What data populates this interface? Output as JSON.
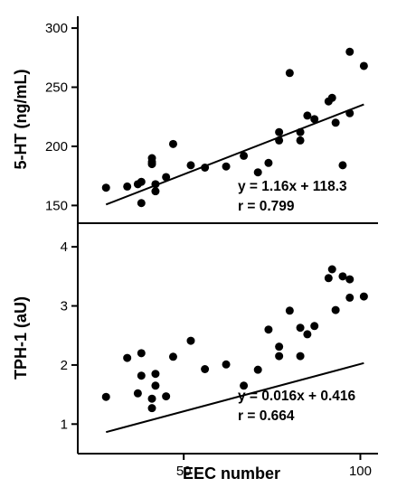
{
  "chart_data": [
    {
      "type": "scatter",
      "xlabel": "",
      "ylabel": "5-HT (ng/mL)",
      "xlim": [
        20,
        105
      ],
      "ylim": [
        135,
        310
      ],
      "yticks": [
        150,
        200,
        250,
        300
      ],
      "xticks": [],
      "grid": false,
      "points": [
        {
          "x": 28,
          "y": 165
        },
        {
          "x": 34,
          "y": 166
        },
        {
          "x": 37,
          "y": 168
        },
        {
          "x": 38,
          "y": 152
        },
        {
          "x": 38,
          "y": 170
        },
        {
          "x": 41,
          "y": 185
        },
        {
          "x": 41,
          "y": 187
        },
        {
          "x": 41,
          "y": 190
        },
        {
          "x": 42,
          "y": 162
        },
        {
          "x": 42,
          "y": 168
        },
        {
          "x": 45,
          "y": 174
        },
        {
          "x": 47,
          "y": 202
        },
        {
          "x": 52,
          "y": 184
        },
        {
          "x": 56,
          "y": 182
        },
        {
          "x": 62,
          "y": 183
        },
        {
          "x": 67,
          "y": 192
        },
        {
          "x": 71,
          "y": 178
        },
        {
          "x": 74,
          "y": 186
        },
        {
          "x": 77,
          "y": 205
        },
        {
          "x": 77,
          "y": 212
        },
        {
          "x": 80,
          "y": 262
        },
        {
          "x": 83,
          "y": 205
        },
        {
          "x": 83,
          "y": 212
        },
        {
          "x": 85,
          "y": 226
        },
        {
          "x": 87,
          "y": 223
        },
        {
          "x": 91,
          "y": 238
        },
        {
          "x": 92,
          "y": 241
        },
        {
          "x": 93,
          "y": 220
        },
        {
          "x": 95,
          "y": 184
        },
        {
          "x": 97,
          "y": 228
        },
        {
          "x": 97,
          "y": 280
        },
        {
          "x": 101,
          "y": 268
        }
      ],
      "fit": {
        "slope": 1.16,
        "intercept": 118.3,
        "x_range": [
          28,
          101
        ]
      },
      "annotations": [
        "y = 1.16x + 118.3",
        "r = 0.799"
      ]
    },
    {
      "type": "scatter",
      "xlabel": "EEC number",
      "ylabel": "TPH-1 (aU)",
      "xlim": [
        20,
        105
      ],
      "ylim": [
        0.5,
        4.4
      ],
      "yticks": [
        1,
        2,
        3,
        4
      ],
      "xticks": [
        50,
        100
      ],
      "grid": false,
      "points": [
        {
          "x": 28,
          "y": 1.46
        },
        {
          "x": 34,
          "y": 2.12
        },
        {
          "x": 37,
          "y": 1.52
        },
        {
          "x": 38,
          "y": 1.82
        },
        {
          "x": 38,
          "y": 2.2
        },
        {
          "x": 41,
          "y": 1.43
        },
        {
          "x": 41,
          "y": 1.27
        },
        {
          "x": 42,
          "y": 1.65
        },
        {
          "x": 42,
          "y": 1.85
        },
        {
          "x": 45,
          "y": 1.47
        },
        {
          "x": 47,
          "y": 2.14
        },
        {
          "x": 52,
          "y": 2.41
        },
        {
          "x": 56,
          "y": 1.93
        },
        {
          "x": 62,
          "y": 2.01
        },
        {
          "x": 67,
          "y": 1.65
        },
        {
          "x": 71,
          "y": 1.92
        },
        {
          "x": 74,
          "y": 2.6
        },
        {
          "x": 77,
          "y": 2.15
        },
        {
          "x": 77,
          "y": 2.31
        },
        {
          "x": 80,
          "y": 2.92
        },
        {
          "x": 83,
          "y": 2.15
        },
        {
          "x": 83,
          "y": 2.63
        },
        {
          "x": 85,
          "y": 2.52
        },
        {
          "x": 87,
          "y": 2.66
        },
        {
          "x": 91,
          "y": 3.47
        },
        {
          "x": 92,
          "y": 3.62
        },
        {
          "x": 93,
          "y": 2.93
        },
        {
          "x": 95,
          "y": 3.5
        },
        {
          "x": 97,
          "y": 3.45
        },
        {
          "x": 97,
          "y": 3.14
        },
        {
          "x": 101,
          "y": 3.16
        }
      ],
      "fit": {
        "slope": 0.016,
        "intercept": 0.416,
        "x_range": [
          28,
          101
        ]
      },
      "annotations": [
        "y = 0.016x + 0.416",
        "r = 0.664"
      ]
    }
  ]
}
